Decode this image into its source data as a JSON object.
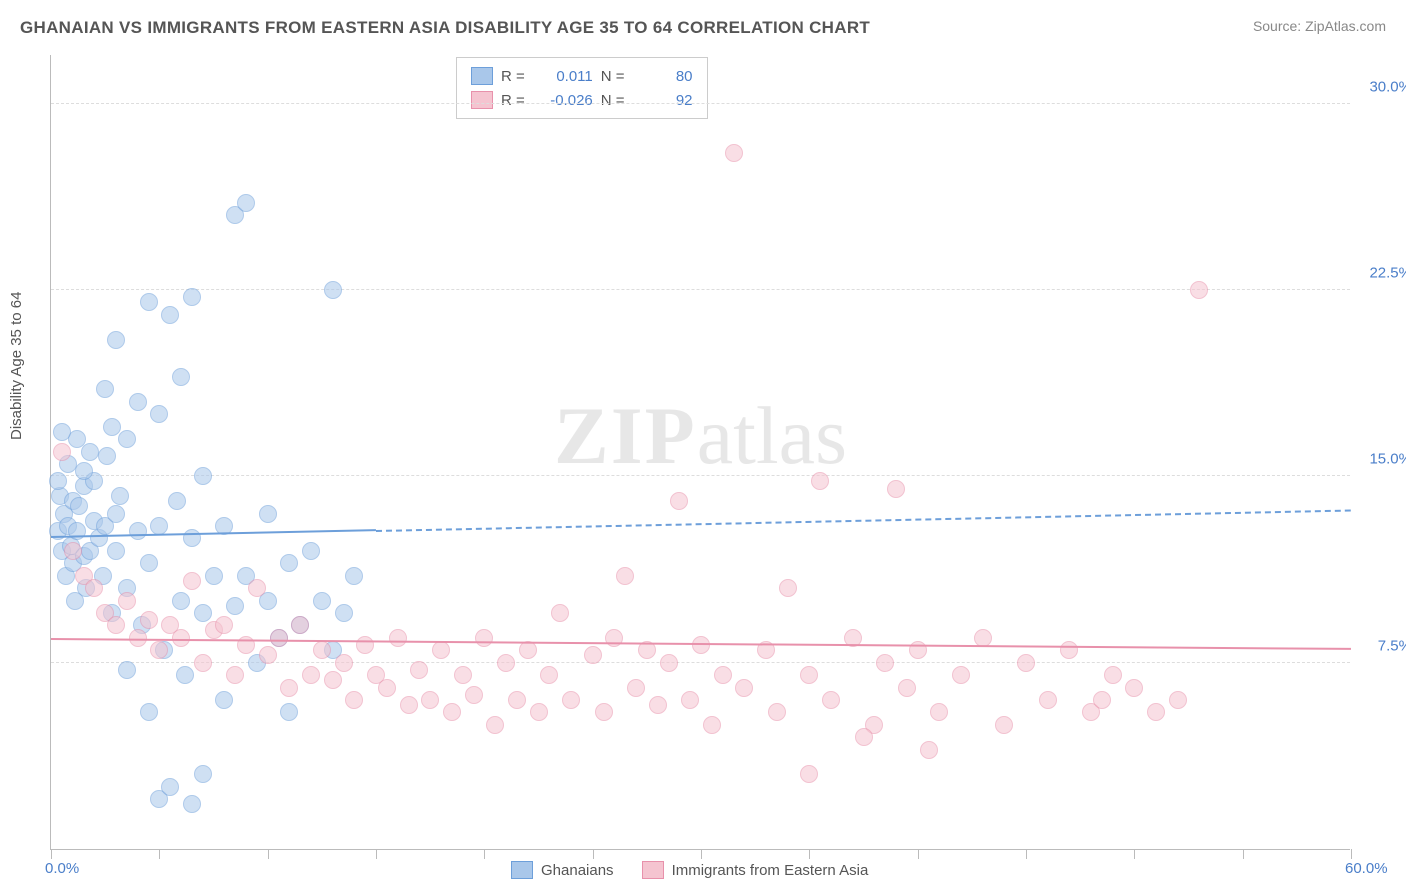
{
  "title": "GHANAIAN VS IMMIGRANTS FROM EASTERN ASIA DISABILITY AGE 35 TO 64 CORRELATION CHART",
  "source": "Source: ZipAtlas.com",
  "ylabel": "Disability Age 35 to 64",
  "watermark_bold": "ZIP",
  "watermark_rest": "atlas",
  "chart": {
    "type": "scatter",
    "xlim": [
      0,
      60
    ],
    "ylim": [
      0,
      32
    ],
    "x_ticks": [
      0,
      30,
      60
    ],
    "x_tick_labels": [
      "0.0%",
      "",
      "60.0%"
    ],
    "x_minor_ticks": [
      5,
      10,
      15,
      20,
      25,
      35,
      40,
      45,
      50,
      55
    ],
    "y_gridlines": [
      7.5,
      15.0,
      22.5,
      30.0
    ],
    "y_tick_labels": [
      "7.5%",
      "15.0%",
      "22.5%",
      "30.0%"
    ],
    "background_color": "#ffffff",
    "grid_color": "#dddddd",
    "axis_color": "#bbbbbb",
    "tick_label_color": "#4a7ec9",
    "point_radius": 9,
    "point_opacity": 0.55,
    "series": [
      {
        "name": "Ghanaians",
        "color_fill": "#a9c7ea",
        "color_stroke": "#6d9fda",
        "R": "0.011",
        "N": "80",
        "trend": {
          "y_at_x0": 12.5,
          "y_at_x60": 13.6,
          "solid_until_x": 15
        },
        "points": [
          [
            0.3,
            12.8
          ],
          [
            0.4,
            14.2
          ],
          [
            0.5,
            12.0
          ],
          [
            0.6,
            13.5
          ],
          [
            0.7,
            11.0
          ],
          [
            0.8,
            13.0
          ],
          [
            0.9,
            12.2
          ],
          [
            1.0,
            14.0
          ],
          [
            1.0,
            11.5
          ],
          [
            1.1,
            10.0
          ],
          [
            1.2,
            12.8
          ],
          [
            1.3,
            13.8
          ],
          [
            1.5,
            14.6
          ],
          [
            1.5,
            11.8
          ],
          [
            1.6,
            10.5
          ],
          [
            1.8,
            12.0
          ],
          [
            2.0,
            13.2
          ],
          [
            2.0,
            14.8
          ],
          [
            2.2,
            12.5
          ],
          [
            2.4,
            11.0
          ],
          [
            2.5,
            13.0
          ],
          [
            2.6,
            15.8
          ],
          [
            2.8,
            9.5
          ],
          [
            3.0,
            12.0
          ],
          [
            3.0,
            13.5
          ],
          [
            3.2,
            14.2
          ],
          [
            3.5,
            10.5
          ],
          [
            3.5,
            16.5
          ],
          [
            4.0,
            12.8
          ],
          [
            4.0,
            18.0
          ],
          [
            4.2,
            9.0
          ],
          [
            4.5,
            11.5
          ],
          [
            4.5,
            22.0
          ],
          [
            5.0,
            13.0
          ],
          [
            5.0,
            17.5
          ],
          [
            5.2,
            8.0
          ],
          [
            5.5,
            21.5
          ],
          [
            5.8,
            14.0
          ],
          [
            6.0,
            10.0
          ],
          [
            6.0,
            19.0
          ],
          [
            6.2,
            7.0
          ],
          [
            6.5,
            12.5
          ],
          [
            6.5,
            22.2
          ],
          [
            7.0,
            9.5
          ],
          [
            7.0,
            15.0
          ],
          [
            7.5,
            11.0
          ],
          [
            8.0,
            13.0
          ],
          [
            8.0,
            6.0
          ],
          [
            8.5,
            9.8
          ],
          [
            8.5,
            25.5
          ],
          [
            9.0,
            11.0
          ],
          [
            9.0,
            26.0
          ],
          [
            9.5,
            7.5
          ],
          [
            10.0,
            10.0
          ],
          [
            10.0,
            13.5
          ],
          [
            10.5,
            8.5
          ],
          [
            11.0,
            11.5
          ],
          [
            11.0,
            5.5
          ],
          [
            11.5,
            9.0
          ],
          [
            12.0,
            12.0
          ],
          [
            12.5,
            10.0
          ],
          [
            13.0,
            8.0
          ],
          [
            13.0,
            22.5
          ],
          [
            13.5,
            9.5
          ],
          [
            14.0,
            11.0
          ],
          [
            5.0,
            2.0
          ],
          [
            5.5,
            2.5
          ],
          [
            6.5,
            1.8
          ],
          [
            7.0,
            3.0
          ],
          [
            4.5,
            5.5
          ],
          [
            3.5,
            7.2
          ],
          [
            2.8,
            17.0
          ],
          [
            3.0,
            20.5
          ],
          [
            2.5,
            18.5
          ],
          [
            1.8,
            16.0
          ],
          [
            1.5,
            15.2
          ],
          [
            1.2,
            16.5
          ],
          [
            0.8,
            15.5
          ],
          [
            0.5,
            16.8
          ],
          [
            0.3,
            14.8
          ]
        ]
      },
      {
        "name": "Immigrants from Eastern Asia",
        "color_fill": "#f5c4d0",
        "color_stroke": "#e891ab",
        "R": "-0.026",
        "N": "92",
        "trend": {
          "y_at_x0": 8.4,
          "y_at_x60": 8.0,
          "solid_until_x": 60
        },
        "points": [
          [
            0.5,
            16.0
          ],
          [
            1.0,
            12.0
          ],
          [
            1.5,
            11.0
          ],
          [
            2.0,
            10.5
          ],
          [
            2.5,
            9.5
          ],
          [
            3.0,
            9.0
          ],
          [
            3.5,
            10.0
          ],
          [
            4.0,
            8.5
          ],
          [
            4.5,
            9.2
          ],
          [
            5.0,
            8.0
          ],
          [
            5.5,
            9.0
          ],
          [
            6.0,
            8.5
          ],
          [
            6.5,
            10.8
          ],
          [
            7.0,
            7.5
          ],
          [
            7.5,
            8.8
          ],
          [
            8.0,
            9.0
          ],
          [
            8.5,
            7.0
          ],
          [
            9.0,
            8.2
          ],
          [
            9.5,
            10.5
          ],
          [
            10.0,
            7.8
          ],
          [
            10.5,
            8.5
          ],
          [
            11.0,
            6.5
          ],
          [
            11.5,
            9.0
          ],
          [
            12.0,
            7.0
          ],
          [
            12.5,
            8.0
          ],
          [
            13.0,
            6.8
          ],
          [
            13.5,
            7.5
          ],
          [
            14.0,
            6.0
          ],
          [
            14.5,
            8.2
          ],
          [
            15.0,
            7.0
          ],
          [
            15.5,
            6.5
          ],
          [
            16.0,
            8.5
          ],
          [
            16.5,
            5.8
          ],
          [
            17.0,
            7.2
          ],
          [
            17.5,
            6.0
          ],
          [
            18.0,
            8.0
          ],
          [
            18.5,
            5.5
          ],
          [
            19.0,
            7.0
          ],
          [
            19.5,
            6.2
          ],
          [
            20.0,
            8.5
          ],
          [
            20.5,
            5.0
          ],
          [
            21.0,
            7.5
          ],
          [
            21.5,
            6.0
          ],
          [
            22.0,
            8.0
          ],
          [
            22.5,
            5.5
          ],
          [
            23.0,
            7.0
          ],
          [
            23.5,
            9.5
          ],
          [
            24.0,
            6.0
          ],
          [
            25.0,
            7.8
          ],
          [
            25.5,
            5.5
          ],
          [
            26.0,
            8.5
          ],
          [
            26.5,
            11.0
          ],
          [
            27.0,
            6.5
          ],
          [
            27.5,
            8.0
          ],
          [
            28.0,
            5.8
          ],
          [
            28.5,
            7.5
          ],
          [
            29.0,
            14.0
          ],
          [
            29.5,
            6.0
          ],
          [
            30.0,
            8.2
          ],
          [
            30.5,
            5.0
          ],
          [
            31.0,
            7.0
          ],
          [
            31.5,
            28.0
          ],
          [
            32.0,
            6.5
          ],
          [
            33.0,
            8.0
          ],
          [
            33.5,
            5.5
          ],
          [
            34.0,
            10.5
          ],
          [
            35.0,
            7.0
          ],
          [
            35.5,
            14.8
          ],
          [
            36.0,
            6.0
          ],
          [
            37.0,
            8.5
          ],
          [
            38.0,
            5.0
          ],
          [
            38.5,
            7.5
          ],
          [
            39.0,
            14.5
          ],
          [
            39.5,
            6.5
          ],
          [
            40.0,
            8.0
          ],
          [
            41.0,
            5.5
          ],
          [
            42.0,
            7.0
          ],
          [
            43.0,
            8.5
          ],
          [
            44.0,
            5.0
          ],
          [
            45.0,
            7.5
          ],
          [
            46.0,
            6.0
          ],
          [
            47.0,
            8.0
          ],
          [
            48.0,
            5.5
          ],
          [
            48.5,
            6.0
          ],
          [
            49.0,
            7.0
          ],
          [
            50.0,
            6.5
          ],
          [
            51.0,
            5.5
          ],
          [
            52.0,
            6.0
          ],
          [
            53.0,
            22.5
          ],
          [
            35.0,
            3.0
          ],
          [
            37.5,
            4.5
          ],
          [
            40.5,
            4.0
          ]
        ]
      }
    ]
  },
  "legend_top": {
    "r_label": "R  =",
    "n_label": "N  ="
  },
  "legend_bottom": [
    {
      "label": "Ghanaians",
      "fill": "#a9c7ea",
      "stroke": "#6d9fda"
    },
    {
      "label": "Immigrants from Eastern Asia",
      "fill": "#f5c4d0",
      "stroke": "#e891ab"
    }
  ]
}
